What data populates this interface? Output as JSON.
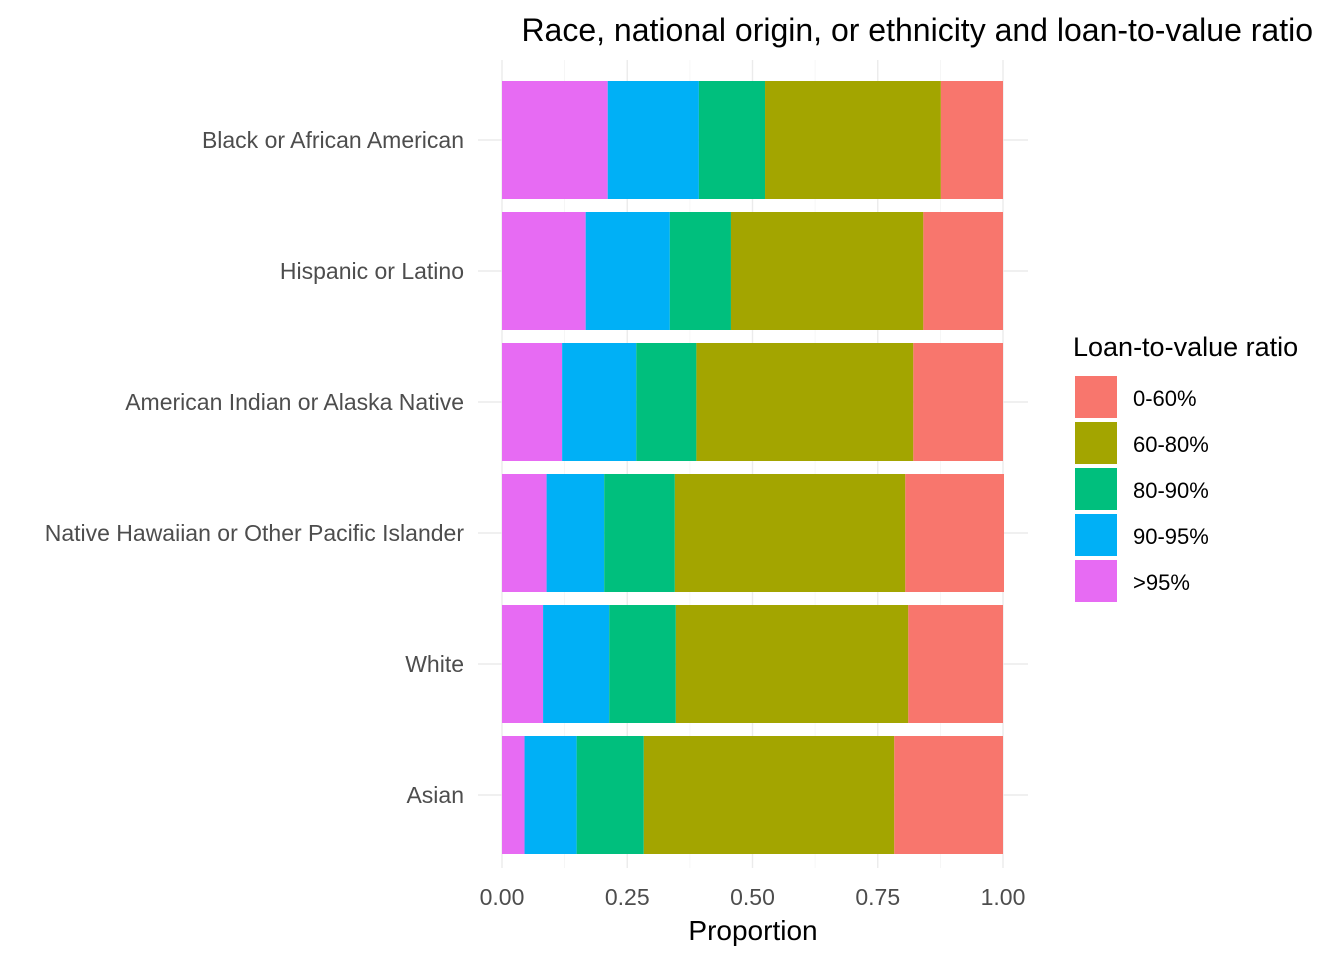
{
  "chart_data": {
    "type": "bar",
    "orientation": "horizontal",
    "stacked": true,
    "title": "Race, national origin, or ethnicity and loan-to-value ratio",
    "xlabel": "Proportion",
    "ylabel": "",
    "xlim": [
      0,
      1
    ],
    "xticks": [
      "0.00",
      "0.25",
      "0.50",
      "0.75",
      "1.00"
    ],
    "xtick_values": [
      0,
      0.25,
      0.5,
      0.75,
      1.0
    ],
    "grid": true,
    "legend": {
      "title": "Loan-to-value ratio",
      "placement": "right",
      "entries": [
        "0-60%",
        "60-80%",
        "80-90%",
        "90-95%",
        ">95%"
      ]
    },
    "categories": [
      "Black or African American",
      "Hispanic or Latino",
      "American Indian or Alaska Native",
      "Native Hawaiian or Other Pacific Islander",
      "White",
      "Asian"
    ],
    "stack_order": [
      ">95%",
      "90-95%",
      "80-90%",
      "60-80%",
      "0-60%"
    ],
    "series": [
      {
        "name": "0-60%",
        "color": "#F8766D",
        "values": [
          0.124,
          0.159,
          0.179,
          0.197,
          0.189,
          0.217
        ]
      },
      {
        "name": "60-80%",
        "color": "#A3A500",
        "values": [
          0.351,
          0.384,
          0.433,
          0.46,
          0.464,
          0.5
        ]
      },
      {
        "name": "80-90%",
        "color": "#00BF7D",
        "values": [
          0.132,
          0.122,
          0.12,
          0.141,
          0.133,
          0.134
        ]
      },
      {
        "name": "90-95%",
        "color": "#00B0F6",
        "values": [
          0.182,
          0.168,
          0.148,
          0.115,
          0.132,
          0.104
        ]
      },
      {
        "name": ">95%",
        "color": "#E76BF3",
        "values": [
          0.211,
          0.167,
          0.12,
          0.089,
          0.082,
          0.045
        ]
      }
    ]
  }
}
